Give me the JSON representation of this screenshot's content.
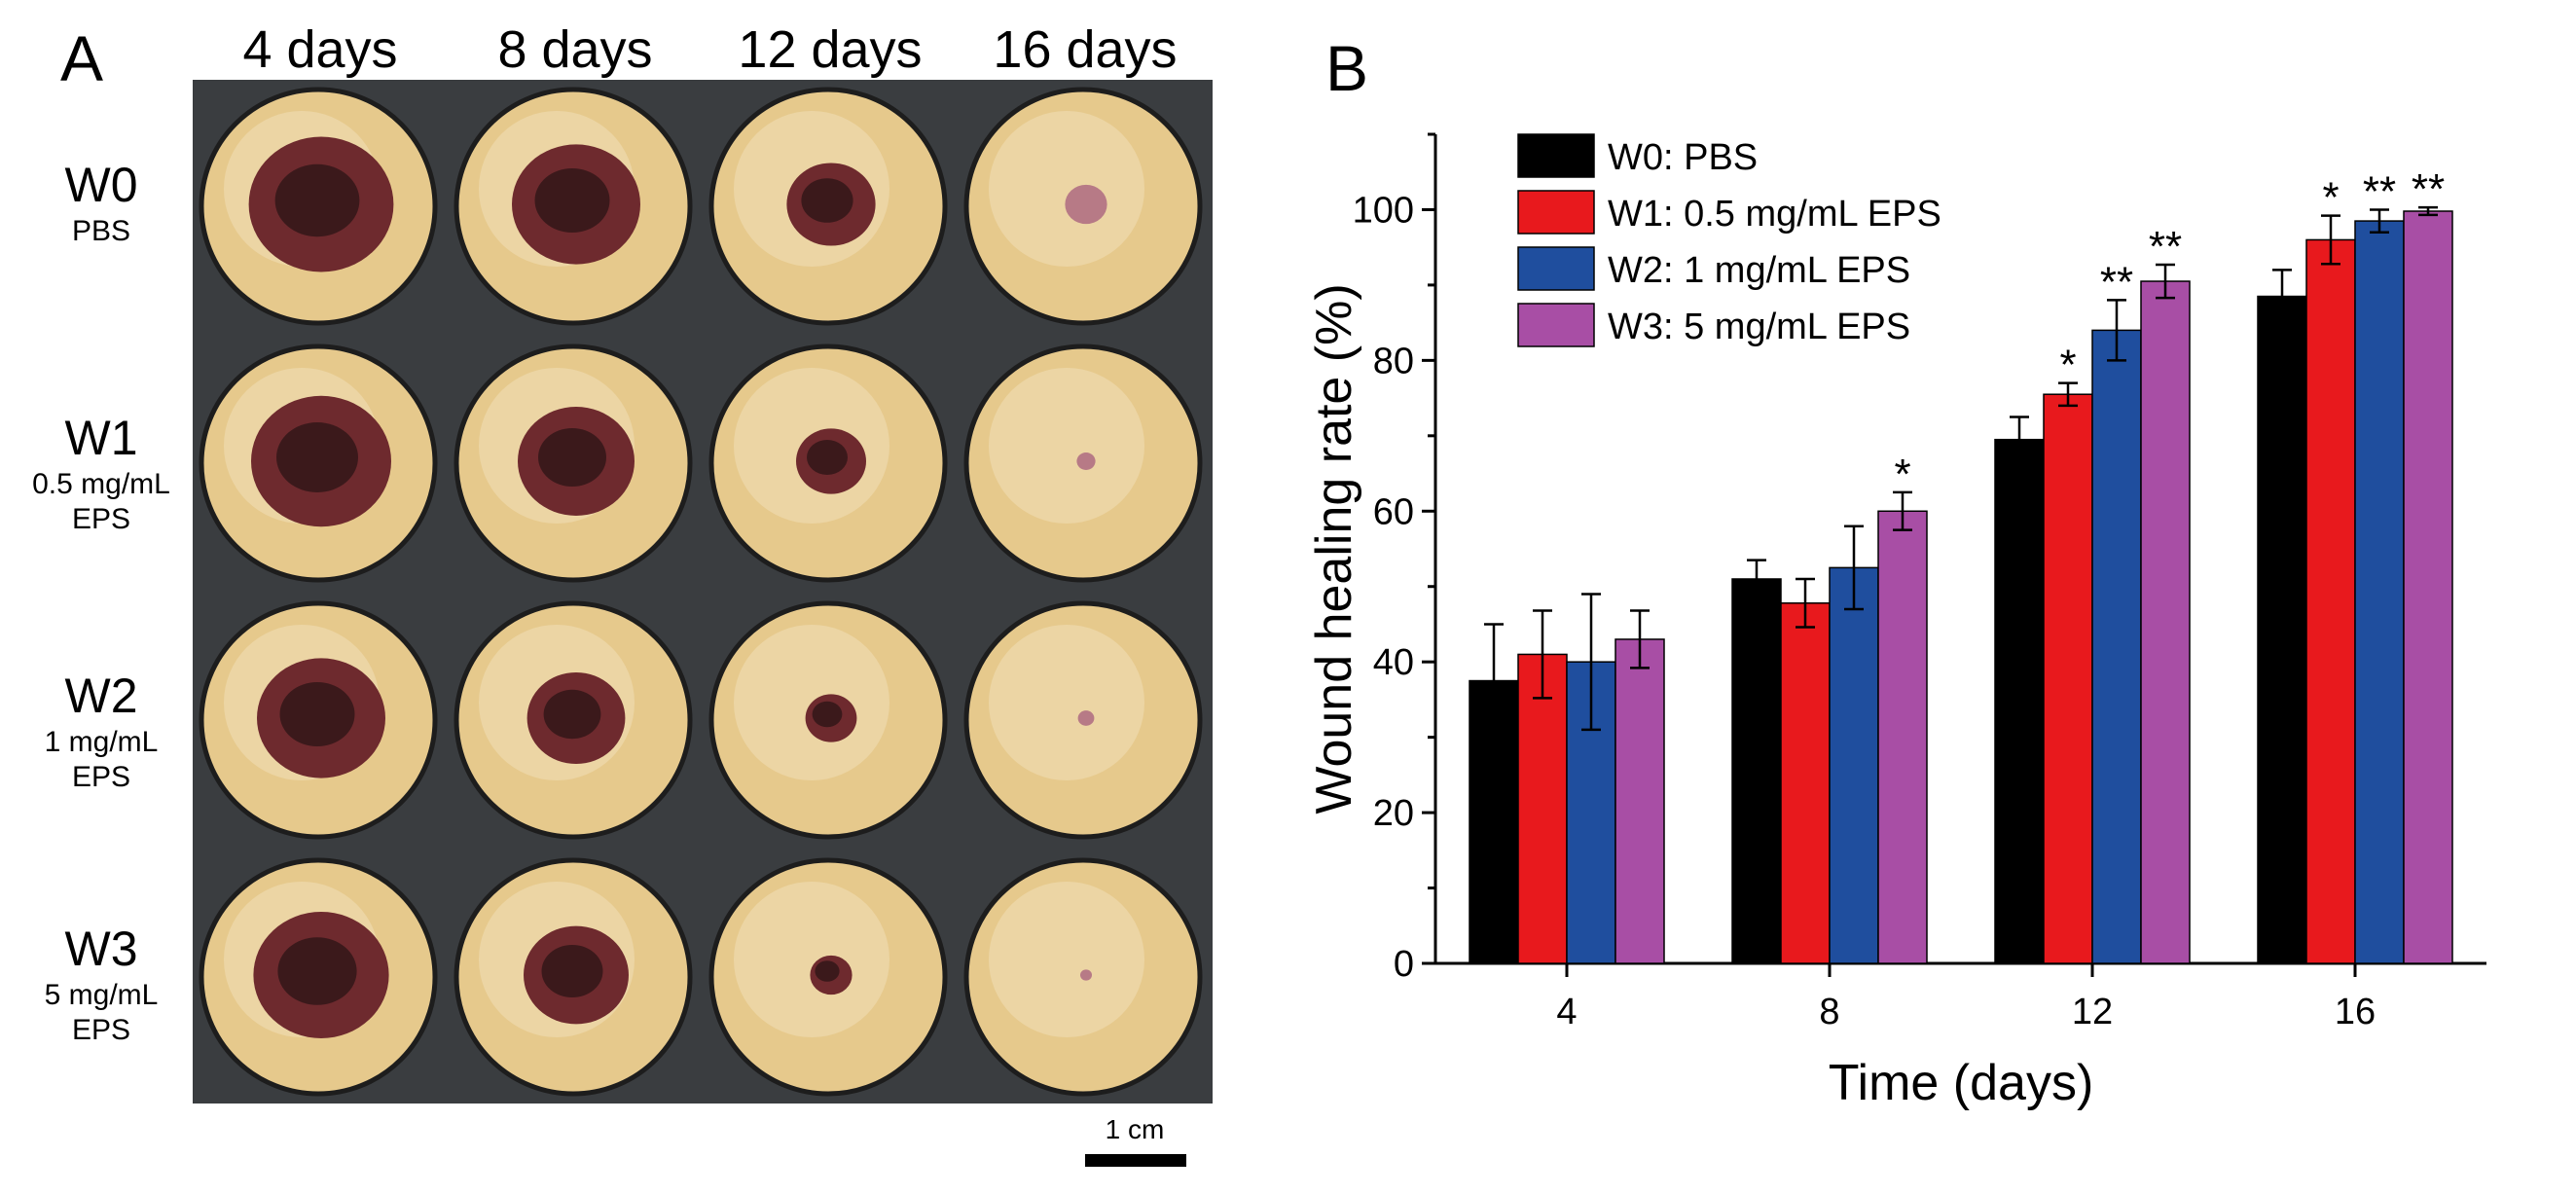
{
  "panel_a": {
    "letter": "A",
    "columns": [
      "4 days",
      "8 days",
      "12 days",
      "16 days"
    ],
    "rows": [
      {
        "code": "W0",
        "sub": [
          "PBS"
        ]
      },
      {
        "code": "W1",
        "sub": [
          "0.5 mg/mL",
          "EPS"
        ]
      },
      {
        "code": "W2",
        "sub": [
          "1 mg/mL",
          "EPS"
        ]
      },
      {
        "code": "W3",
        "sub": [
          "5 mg/mL",
          "EPS"
        ]
      }
    ],
    "scale_bar_label": "1 cm",
    "colors": {
      "fur": "#e6c98c",
      "wound": "#6e2a2e",
      "scab": "#2b1416",
      "background": "#3a3d40"
    }
  },
  "chart_data": {
    "type": "bar",
    "panel_letter": "B",
    "title": "",
    "xlabel": "Time (days)",
    "ylabel": "Wound healing rate (%)",
    "ylim": [
      0,
      110
    ],
    "yticks": [
      0,
      20,
      40,
      60,
      80,
      100
    ],
    "categories": [
      "4",
      "8",
      "12",
      "16"
    ],
    "grid": false,
    "legend_position": "top-left",
    "series": [
      {
        "name": "W0: PBS",
        "color": "#000000",
        "values": [
          37.5,
          51,
          69.5,
          88.5
        ],
        "errors": [
          7.5,
          2.5,
          3,
          3.5
        ],
        "marks": [
          "",
          "",
          "",
          ""
        ]
      },
      {
        "name": "W1: 0.5 mg/mL EPS",
        "color": "#e8191d",
        "values": [
          41,
          47.8,
          75.5,
          96
        ],
        "errors": [
          5.8,
          3.2,
          1.5,
          3.2
        ],
        "marks": [
          "",
          "",
          "*",
          "*"
        ]
      },
      {
        "name": "W2: 1 mg/mL EPS",
        "color": "#1f4e9e",
        "values": [
          40,
          52.5,
          84,
          98.5
        ],
        "errors": [
          9,
          5.5,
          4,
          1.5
        ],
        "marks": [
          "",
          "",
          "**",
          "**"
        ]
      },
      {
        "name": "W3: 5 mg/mL EPS",
        "color": "#a84ea5",
        "values": [
          43,
          60,
          90.5,
          99.8
        ],
        "errors": [
          3.8,
          2.5,
          2.2,
          0.5
        ],
        "marks": [
          "",
          "*",
          "**",
          "**"
        ]
      }
    ]
  }
}
